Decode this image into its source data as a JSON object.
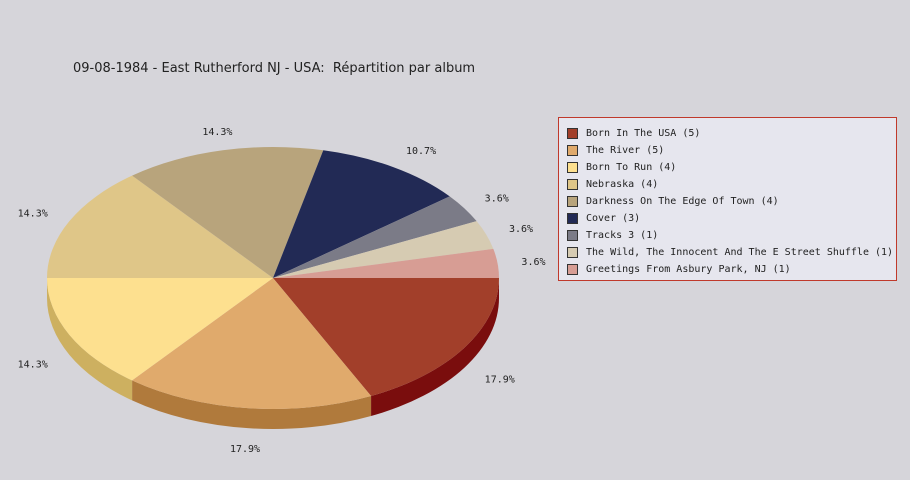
{
  "chart_data": {
    "type": "pie",
    "title": "09-08-1984 - East Rutherford NJ - USA:  Répartition par album",
    "slices": [
      {
        "label": "Born In The USA (5)",
        "value": 5,
        "percent_label": "17.9%",
        "color": "#a23f2a",
        "side": "#7a0d0d"
      },
      {
        "label": "The River (5)",
        "value": 5,
        "percent_label": "17.9%",
        "color": "#e0aa6c",
        "side": "#b07a3c"
      },
      {
        "label": "Born To Run (4)",
        "value": 4,
        "percent_label": "14.3%",
        "color": "#fde08f",
        "side": "#cdb060"
      },
      {
        "label": "Nebraska (4)",
        "value": 4,
        "percent_label": "14.3%",
        "color": "#dfc688",
        "side": "#af9658"
      },
      {
        "label": "Darkness On The Edge Of Town (4)",
        "value": 4,
        "percent_label": "14.3%",
        "color": "#b8a47c",
        "side": "#88744c"
      },
      {
        "label": "Cover (3)",
        "value": 3,
        "percent_label": "10.7%",
        "color": "#222a55",
        "side": "#111533"
      },
      {
        "label": "Tracks 3 (1)",
        "value": 1,
        "percent_label": "3.6%",
        "color": "#7b7b87",
        "side": "#555560"
      },
      {
        "label": "The Wild, The Innocent And The E Street Shuffle (1)",
        "value": 1,
        "percent_label": "3.6%",
        "color": "#d6cbb2",
        "side": "#a69b82"
      },
      {
        "label": "Greetings From Asbury Park, NJ (1)",
        "value": 1,
        "percent_label": "3.6%",
        "color": "#d79d94",
        "side": "#a76d64"
      }
    ]
  }
}
